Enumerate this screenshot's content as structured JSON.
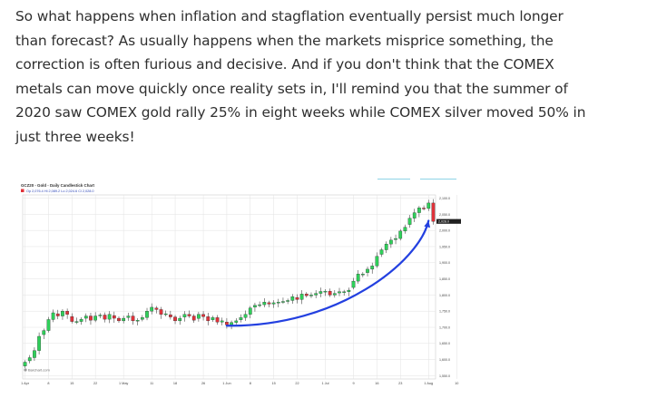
{
  "article": {
    "lines": [
      "So what happens when inflation and stagflation eventually persist much longer",
      "than forecast? As usually happens when the markets misprice something, the",
      "correction is often furious and decisive. And if you don't think that the COMEX",
      "metals can move quickly once reality sets in, I'll remind you that the summer of",
      "2020 saw COMEX gold rally 25% in eight weeks while COMEX silver moved 50% in",
      "just three weeks!"
    ]
  },
  "colors": {
    "up": "#2fd05a",
    "down": "#e0323a",
    "arrow": "#2340e0",
    "grid": "#e2e2e2",
    "decor_lines": "#8ed3e6"
  },
  "chart_data": {
    "type": "candlestick",
    "title": "GCZ20 - Gold - Daily Candlestick Chart",
    "ohlc_label": "Op 2,076.4 Hi 2,089.2 Lo 2,024.6 Cl 2,028.0",
    "watermark": "Barchart.com",
    "price_badge": "2,028.0",
    "y_ticks": [
      2100,
      2050,
      2000,
      1950,
      1900,
      1850,
      1800,
      1750,
      1700,
      1650,
      1600,
      1550
    ],
    "y_tick_labels": [
      "2,100.0",
      "2,050.0",
      "2,000.0",
      "1,950.0",
      "1,900.0",
      "1,850.0",
      "1,800.0",
      "1,750.0",
      "1,700.0",
      "1,650.0",
      "1,600.0",
      "1,550.0"
    ],
    "ylim": [
      1540,
      2110
    ],
    "x_tick_labels": [
      "1 Apr",
      "8",
      "15",
      "22",
      "1 May",
      "11",
      "18",
      "26",
      "1 Jun",
      "8",
      "15",
      "22",
      "1 Jul",
      "9",
      "16",
      "23",
      "1 Aug",
      "10"
    ],
    "x_tick_index": [
      0,
      5,
      10,
      15,
      21,
      27,
      32,
      38,
      43,
      48,
      53,
      58,
      64,
      70,
      75,
      80,
      86,
      92
    ],
    "closes": [
      1592,
      1606,
      1628,
      1672,
      1690,
      1724,
      1745,
      1735,
      1750,
      1740,
      1718,
      1718,
      1725,
      1735,
      1722,
      1735,
      1738,
      1725,
      1740,
      1728,
      1720,
      1728,
      1735,
      1720,
      1722,
      1730,
      1750,
      1762,
      1755,
      1740,
      1742,
      1732,
      1720,
      1728,
      1740,
      1735,
      1722,
      1740,
      1733,
      1720,
      1730,
      1716,
      1720,
      1708,
      1715,
      1720,
      1730,
      1740,
      1760,
      1768,
      1770,
      1778,
      1772,
      1776,
      1778,
      1780,
      1783,
      1795,
      1786,
      1803,
      1798,
      1800,
      1805,
      1811,
      1812,
      1800,
      1805,
      1810,
      1810,
      1815,
      1843,
      1865,
      1865,
      1880,
      1890,
      1920,
      1940,
      1958,
      1970,
      1975,
      1998,
      2010,
      2038,
      2055,
      2070,
      2068,
      2085,
      2028
    ],
    "arrow": {
      "from_index": 43,
      "from_value": 1705,
      "to_index": 86,
      "to_value": 2030
    }
  }
}
